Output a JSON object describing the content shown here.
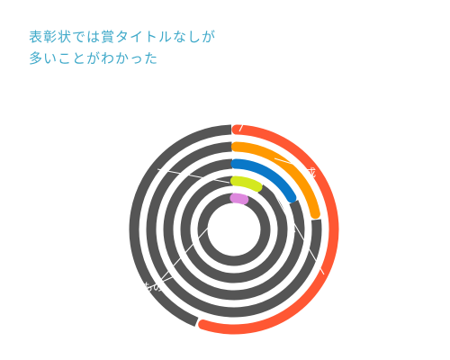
{
  "chart_data": {
    "type": "radial-bar",
    "title_lines": [
      "表彰状では賞タイトルなしが",
      "多いことがわかった"
    ],
    "max": 100,
    "series": [
      {
        "label": "",
        "value": 55,
        "color": "#ff5733"
      },
      {
        "label": "",
        "value": 22,
        "color": "#ff9900"
      },
      {
        "label": "",
        "value": 17,
        "color": "#0a78c8"
      },
      {
        "label": "",
        "value": 8,
        "color": "#d4e81f"
      },
      {
        "label": "",
        "value": 5,
        "color": "#dd88dd"
      }
    ],
    "remainder_color": "#555555",
    "annotations": [
      {
        "text": "成"
      },
      {
        "text": "もの"
      }
    ]
  }
}
